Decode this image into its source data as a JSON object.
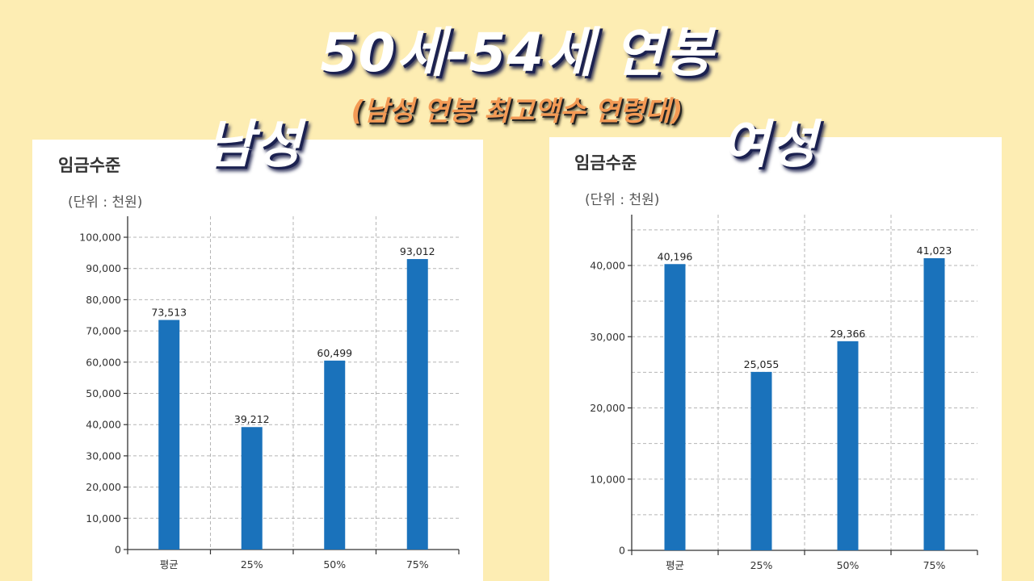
{
  "headline": "50세-54세 연봉",
  "subhead": "(남성 연봉 최고액수 연령대)",
  "colors": {
    "bar": "#1a72bb",
    "background": "#fdedb3",
    "panel": "#ffffff"
  },
  "panels": [
    {
      "gender_label": "남성",
      "title": "임금수준",
      "unit": "(단위 : 천원)"
    },
    {
      "gender_label": "여성",
      "title": "임금수준",
      "unit": "(단위 : 천원)"
    }
  ],
  "chart_data": [
    {
      "type": "bar",
      "title": "임금수준",
      "categories": [
        "평균",
        "25%",
        "50%",
        "75%"
      ],
      "values": [
        73513,
        39212,
        60499,
        93012
      ],
      "value_labels": [
        "73,513",
        "39,212",
        "60,499",
        "93,012"
      ],
      "yticks": [
        0,
        10000,
        20000,
        30000,
        40000,
        50000,
        60000,
        70000,
        80000,
        90000,
        100000
      ],
      "ytick_labels": [
        "0",
        "10,000",
        "20,000",
        "30,000",
        "40,000",
        "50,000",
        "60,000",
        "70,000",
        "80,000",
        "90,000",
        "100,000"
      ],
      "ylim": [
        0,
        100000
      ],
      "grid": true
    },
    {
      "type": "bar",
      "title": "임금수준",
      "categories": [
        "평균",
        "25%",
        "50%",
        "75%"
      ],
      "values": [
        40196,
        25055,
        29366,
        41023
      ],
      "value_labels": [
        "40,196",
        "25,055",
        "29,366",
        "41,023"
      ],
      "yticks": [
        0,
        10000,
        20000,
        30000,
        40000
      ],
      "ytick_labels": [
        "0",
        "10,000",
        "20,000",
        "30,000",
        "40,000"
      ],
      "ylim": [
        0,
        40000
      ],
      "grid": true
    }
  ]
}
